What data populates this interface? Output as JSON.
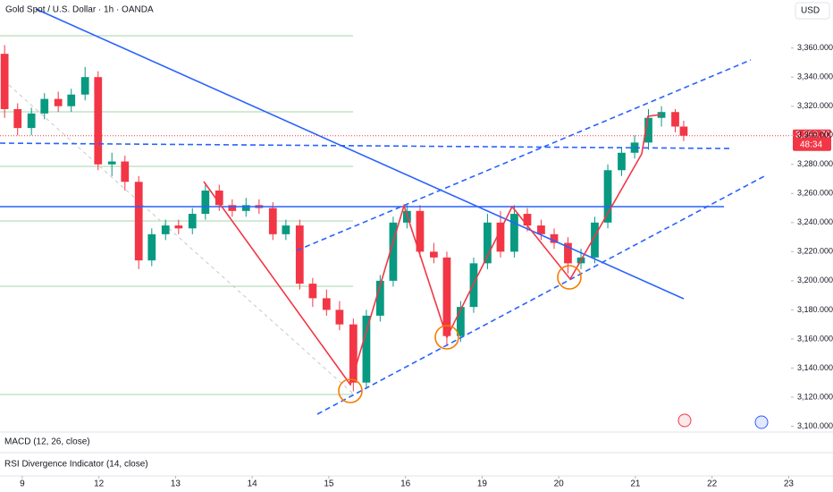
{
  "chart_data": {
    "type": "candlestick",
    "title": "Gold Spot / U.S. Dollar · 1h · OANDA",
    "currency": "USD",
    "indicators": [
      "MACD (12, 26, close)",
      "RSI Divergence Indicator (14, close)"
    ],
    "last_price": {
      "value": 3299.7,
      "label": "3,299.700"
    },
    "countdown": "48:34",
    "up_color": "#089981",
    "down_color": "#f23645",
    "xlim": [
      -0.29,
      10.03
    ],
    "xticks": [
      {
        "value": 0,
        "label": "9"
      },
      {
        "value": 1,
        "label": "12"
      },
      {
        "value": 2,
        "label": "13"
      },
      {
        "value": 3,
        "label": "14"
      },
      {
        "value": 4,
        "label": "15"
      },
      {
        "value": 5,
        "label": "16"
      },
      {
        "value": 6,
        "label": "19"
      },
      {
        "value": 7,
        "label": "20"
      },
      {
        "value": 8,
        "label": "21"
      },
      {
        "value": 9,
        "label": "22"
      },
      {
        "value": 10,
        "label": "23"
      }
    ],
    "ylim": [
      3096,
      3393
    ],
    "yticks": [
      {
        "value": 3100,
        "label": "3,100.000"
      },
      {
        "value": 3120,
        "label": "3,120.000"
      },
      {
        "value": 3140,
        "label": "3,140.000"
      },
      {
        "value": 3160,
        "label": "3,160.000"
      },
      {
        "value": 3180,
        "label": "3,180.000"
      },
      {
        "value": 3200,
        "label": "3,200.000"
      },
      {
        "value": 3220,
        "label": "3,220.000"
      },
      {
        "value": 3240,
        "label": "3,240.000"
      },
      {
        "value": 3260,
        "label": "3,260.000"
      },
      {
        "value": 3280,
        "label": "3,280.000"
      },
      {
        "value": 3300,
        "label": "3,300.000"
      },
      {
        "value": 3320,
        "label": "3,320.000"
      },
      {
        "value": 3340,
        "label": "3,340.000"
      },
      {
        "value": 3360,
        "label": "3,360.000"
      }
    ],
    "x": [
      -0.23,
      -0.06,
      0.12,
      0.29,
      0.47,
      0.64,
      0.82,
      0.99,
      1.17,
      1.34,
      1.52,
      1.69,
      1.87,
      2.04,
      2.22,
      2.39,
      2.57,
      2.74,
      2.92,
      3.09,
      3.27,
      3.44,
      3.62,
      3.79,
      3.97,
      4.14,
      4.32,
      4.49,
      4.67,
      4.84,
      5.02,
      5.19,
      5.37,
      5.54,
      5.72,
      5.89,
      6.07,
      6.24,
      6.42,
      6.59,
      6.77,
      6.94,
      7.12,
      7.29,
      7.47,
      7.64,
      7.82,
      7.99,
      8.17,
      8.34,
      8.52,
      8.63
    ],
    "open": [
      3356,
      3318,
      3305,
      3315,
      3325,
      3320,
      3328,
      3340,
      3280,
      3282,
      3268,
      3214,
      3232,
      3238,
      3236,
      3246,
      3262,
      3252,
      3248,
      3252,
      3250,
      3232,
      3238,
      3198,
      3188,
      3180,
      3170,
      3130,
      3176,
      3200,
      3240,
      3248,
      3220,
      3216,
      3162,
      3182,
      3212,
      3240,
      3220,
      3246,
      3238,
      3232,
      3226,
      3212,
      3216,
      3240,
      3276,
      3288,
      3295,
      3312,
      3316,
      3306
    ],
    "high": [
      3362,
      3322,
      3319,
      3329,
      3330,
      3332,
      3347,
      3344,
      3288,
      3286,
      3272,
      3236,
      3242,
      3242,
      3250,
      3266,
      3266,
      3256,
      3257,
      3256,
      3254,
      3242,
      3242,
      3202,
      3194,
      3186,
      3174,
      3180,
      3204,
      3244,
      3252,
      3252,
      3226,
      3220,
      3186,
      3216,
      3246,
      3248,
      3252,
      3250,
      3242,
      3236,
      3230,
      3222,
      3244,
      3280,
      3292,
      3300,
      3318,
      3320,
      3318,
      3310
    ],
    "low": [
      3312,
      3300,
      3300,
      3311,
      3316,
      3316,
      3324,
      3276,
      3272,
      3262,
      3208,
      3210,
      3228,
      3232,
      3232,
      3242,
      3248,
      3244,
      3244,
      3246,
      3228,
      3228,
      3194,
      3182,
      3176,
      3166,
      3124,
      3126,
      3172,
      3196,
      3236,
      3216,
      3212,
      3155,
      3158,
      3178,
      3208,
      3216,
      3216,
      3234,
      3228,
      3222,
      3205,
      3208,
      3212,
      3236,
      3272,
      3284,
      3290,
      3306,
      3302,
      3296
    ],
    "close": [
      3318,
      3305,
      3315,
      3325,
      3320,
      3328,
      3340,
      3280,
      3282,
      3268,
      3214,
      3232,
      3238,
      3236,
      3246,
      3262,
      3252,
      3248,
      3252,
      3250,
      3232,
      3238,
      3198,
      3188,
      3180,
      3170,
      3130,
      3176,
      3200,
      3240,
      3248,
      3220,
      3216,
      3162,
      3182,
      3212,
      3240,
      3220,
      3246,
      3238,
      3232,
      3226,
      3212,
      3216,
      3240,
      3276,
      3288,
      3295,
      3312,
      3316,
      3306,
      3299.7
    ]
  }
}
